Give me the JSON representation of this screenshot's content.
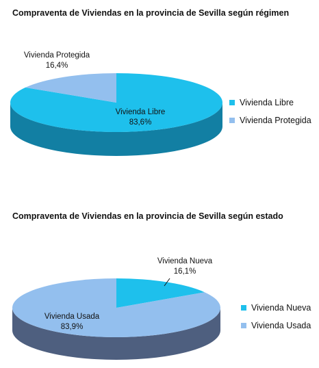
{
  "chart_data": [
    {
      "type": "pie",
      "title": "Compraventa de Viviendas en la provincia de Sevilla según régimen",
      "categories": [
        "Vivienda Libre",
        "Vivienda Protegida"
      ],
      "values": [
        83.6,
        16.4
      ],
      "value_labels": [
        "83,6%",
        "16,4%"
      ],
      "colors": [
        "#1ec0ec",
        "#93bfee"
      ],
      "side_colors": [
        "#127fa3",
        "#5f8cbf"
      ],
      "legend": "right",
      "style": "3d"
    },
    {
      "type": "pie",
      "title": "Compraventa de Viviendas en la provincia de Sevilla según estado",
      "categories": [
        "Vivienda Nueva",
        "Vivienda Usada"
      ],
      "values": [
        16.1,
        83.9
      ],
      "value_labels": [
        "16,1%",
        "83,9%"
      ],
      "colors": [
        "#1ec0ec",
        "#93bfee"
      ],
      "side_colors": [
        "#127fa3",
        "#4e5f7f"
      ],
      "legend": "right",
      "style": "3d"
    }
  ]
}
